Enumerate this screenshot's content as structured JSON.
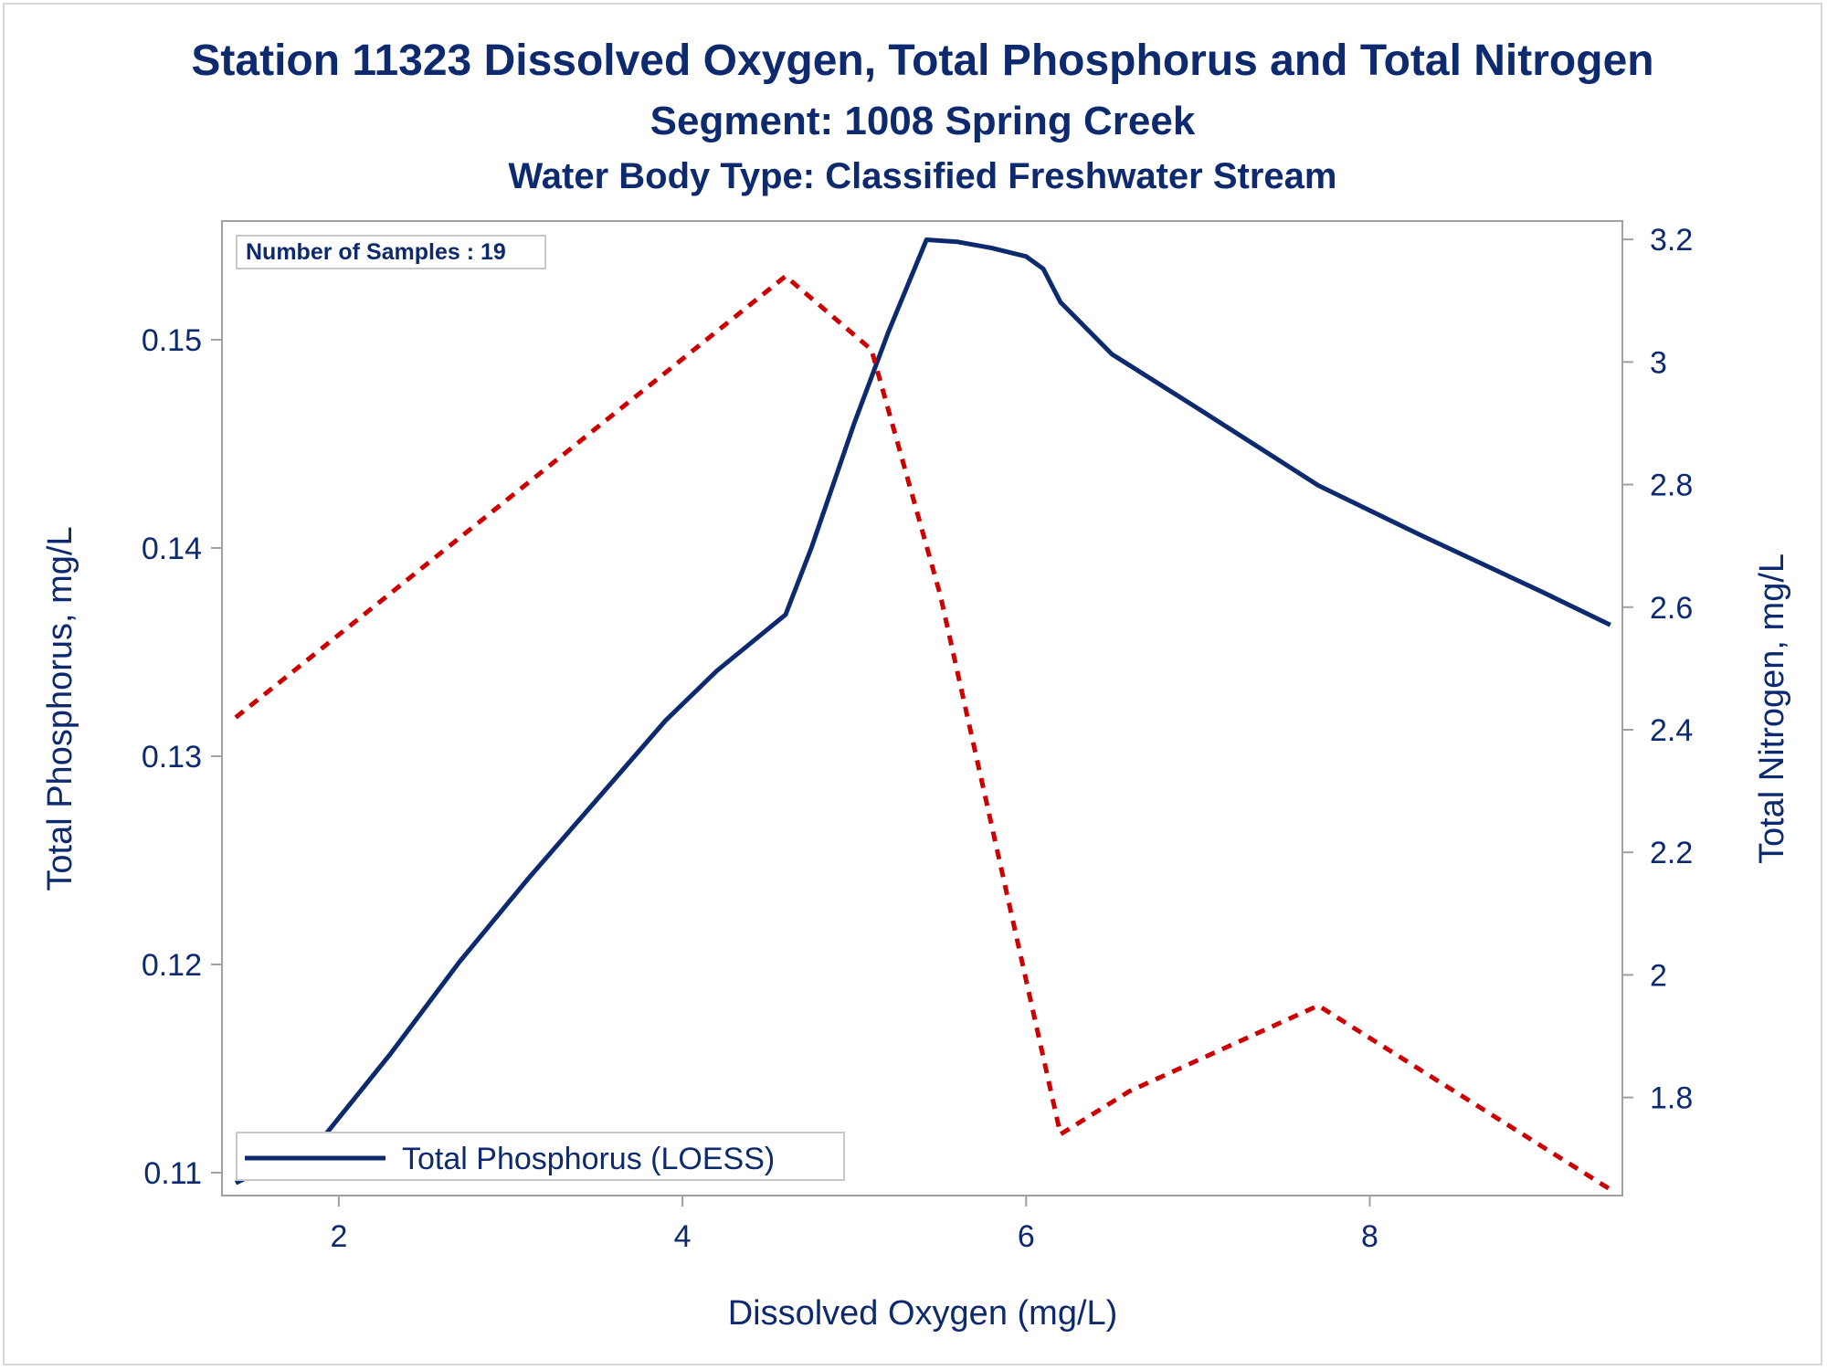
{
  "titles": {
    "line1": "Station 11323  Dissolved Oxygen, Total Phosphorus and Total Nitrogen",
    "line2": "Segment: 1008  Spring Creek",
    "line3": "Water Body Type: Classified Freshwater Stream"
  },
  "inset": {
    "text": "Number of Samples : 19"
  },
  "colors": {
    "text": "#0d2a6f",
    "phosphorus": "#0d2a6f",
    "nitrogen": "#cc0000",
    "frame": "#a0a0a0"
  },
  "chart_data": {
    "type": "line",
    "xlabel": "Dissolved Oxygen (mg/L)",
    "ylabel": "Total Phosphorus, mg/L",
    "y2label": "Total Nitrogen, mg/L",
    "xlim": [
      1.32,
      9.47
    ],
    "ylim": [
      0.1089,
      0.1557
    ],
    "y2lim": [
      1.64,
      3.23
    ],
    "xticks": [
      "2",
      "4",
      "6",
      "8"
    ],
    "yticks": [
      "0.11",
      "0.12",
      "0.13",
      "0.14",
      "0.15"
    ],
    "y2ticks": [
      "1.8",
      "2",
      "2.2",
      "2.4",
      "2.6",
      "2.8",
      "3",
      "3.2"
    ],
    "legend": {
      "position": "bottom-left"
    },
    "series": [
      {
        "name": "Total Phosphorus (LOESS)",
        "axis": "left",
        "style": "solid",
        "x": [
          1.4,
          1.6,
          1.9,
          2.3,
          2.7,
          3.1,
          3.5,
          3.9,
          4.2,
          4.6,
          4.75,
          5.0,
          5.2,
          5.42,
          5.6,
          5.8,
          6.0,
          6.1,
          6.2,
          6.5,
          7.0,
          7.7,
          8.3,
          9.0,
          9.4
        ],
        "values": [
          0.1095,
          0.1103,
          0.1116,
          0.1157,
          0.1201,
          0.1241,
          0.1279,
          0.1317,
          0.1341,
          0.1368,
          0.14,
          0.146,
          0.1504,
          0.1548,
          0.1547,
          0.1544,
          0.154,
          0.1534,
          0.1518,
          0.1493,
          0.1467,
          0.143,
          0.1406,
          0.1379,
          0.1363
        ]
      },
      {
        "name": "Total Nitrogen",
        "axis": "right",
        "style": "dotted",
        "x": [
          1.4,
          4.6,
          5.1,
          5.5,
          6.2,
          6.6,
          7.7,
          9.4
        ],
        "values": [
          2.42,
          3.14,
          3.02,
          2.62,
          1.74,
          1.81,
          1.95,
          1.65
        ]
      }
    ]
  }
}
